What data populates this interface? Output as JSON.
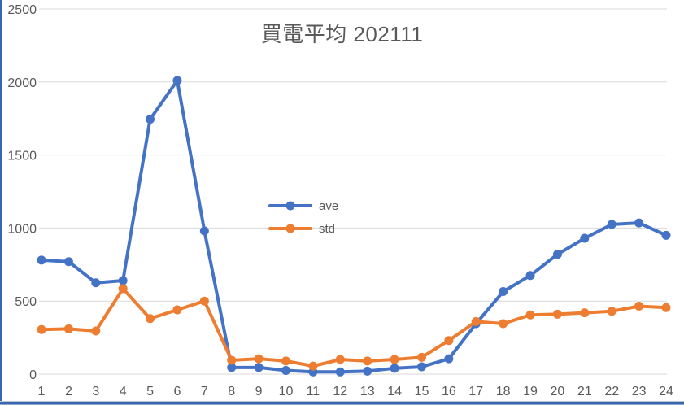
{
  "chart_data": {
    "type": "line",
    "title": "買電平均 202111",
    "categories": [
      1,
      2,
      3,
      4,
      5,
      6,
      7,
      8,
      9,
      10,
      11,
      12,
      13,
      14,
      15,
      16,
      17,
      18,
      19,
      20,
      21,
      22,
      23,
      24
    ],
    "series": [
      {
        "name": "ave",
        "color": "#4472C4",
        "values": [
          780,
          770,
          625,
          640,
          1745,
          2010,
          980,
          45,
          45,
          25,
          15,
          15,
          20,
          40,
          50,
          105,
          345,
          565,
          675,
          820,
          930,
          1025,
          1035,
          950
        ]
      },
      {
        "name": "std",
        "color": "#ED7D31",
        "values": [
          305,
          310,
          295,
          585,
          380,
          440,
          500,
          95,
          105,
          90,
          55,
          100,
          90,
          100,
          115,
          230,
          360,
          345,
          405,
          410,
          420,
          430,
          465,
          455
        ]
      }
    ],
    "xlabel": "",
    "ylabel": "",
    "ylim": [
      0,
      2500
    ],
    "yticks": [
      0,
      500,
      1000,
      1500,
      2000,
      2500
    ],
    "grid": true,
    "legend_position": "inside-center-left",
    "marker": "circle",
    "axis_text_color": "#595959",
    "gridline_color": "#D9D9D9"
  }
}
